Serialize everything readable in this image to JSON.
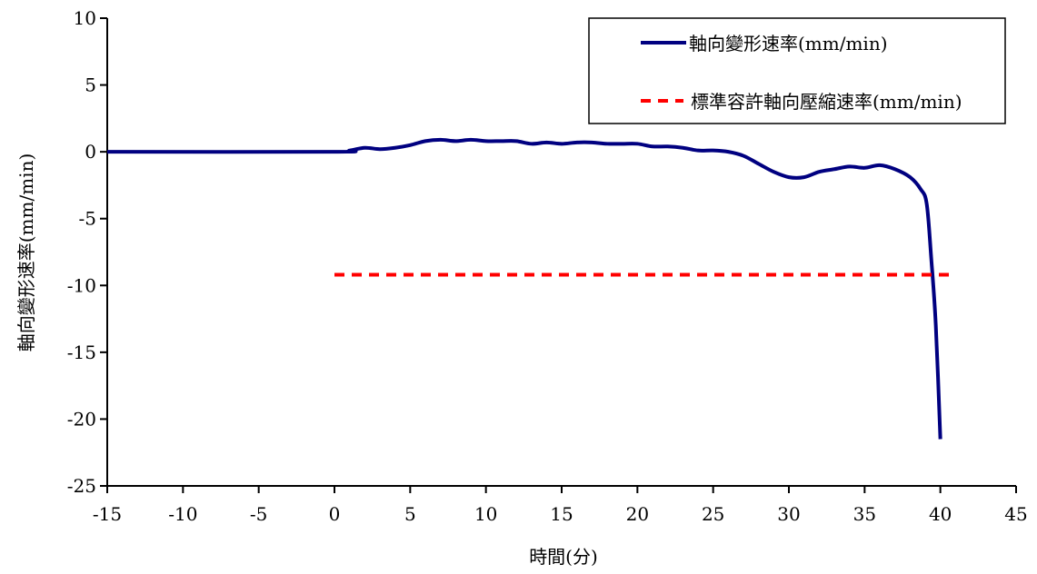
{
  "chart_data": {
    "type": "line",
    "xlabel": "時間(分)",
    "ylabel": "軸向變形速率(mm/min)",
    "xlim": [
      -15,
      45
    ],
    "ylim": [
      -25,
      10
    ],
    "x_ticks": [
      -15,
      -10,
      -5,
      0,
      5,
      10,
      15,
      20,
      25,
      30,
      35,
      40,
      45
    ],
    "y_ticks": [
      10,
      5,
      0,
      -5,
      -10,
      -15,
      -20,
      -25
    ],
    "grid": false,
    "legend_position": "top-right",
    "series": [
      {
        "name": "軸向變形速率(mm/min)",
        "color": "#000080",
        "style": "solid",
        "points": [
          [
            -15,
            0
          ],
          [
            0,
            0
          ],
          [
            1,
            0.1
          ],
          [
            2,
            0.3
          ],
          [
            3,
            0.2
          ],
          [
            4,
            0.3
          ],
          [
            5,
            0.5
          ],
          [
            6,
            0.8
          ],
          [
            7,
            0.9
          ],
          [
            8,
            0.8
          ],
          [
            9,
            0.9
          ],
          [
            10,
            0.8
          ],
          [
            11,
            0.8
          ],
          [
            12,
            0.8
          ],
          [
            13,
            0.6
          ],
          [
            14,
            0.7
          ],
          [
            15,
            0.6
          ],
          [
            16,
            0.7
          ],
          [
            17,
            0.7
          ],
          [
            18,
            0.6
          ],
          [
            19,
            0.6
          ],
          [
            20,
            0.6
          ],
          [
            21,
            0.4
          ],
          [
            22,
            0.4
          ],
          [
            23,
            0.3
          ],
          [
            24,
            0.1
          ],
          [
            25,
            0.1
          ],
          [
            26,
            0.0
          ],
          [
            27,
            -0.3
          ],
          [
            28,
            -0.9
          ],
          [
            29,
            -1.5
          ],
          [
            30,
            -1.9
          ],
          [
            31,
            -1.9
          ],
          [
            32,
            -1.5
          ],
          [
            33,
            -1.3
          ],
          [
            34,
            -1.1
          ],
          [
            35,
            -1.2
          ],
          [
            36,
            -1.0
          ],
          [
            37,
            -1.3
          ],
          [
            38,
            -1.9
          ],
          [
            38.7,
            -2.8
          ],
          [
            39.1,
            -3.9
          ],
          [
            39.4,
            -8.0
          ],
          [
            39.7,
            -13.0
          ],
          [
            40.0,
            -21.5
          ]
        ]
      },
      {
        "name": "標準容許軸向壓縮速率(mm/min)",
        "color": "#ff0000",
        "style": "dashed",
        "points": [
          [
            0,
            -9.2
          ],
          [
            40.7,
            -9.2
          ]
        ]
      }
    ]
  }
}
